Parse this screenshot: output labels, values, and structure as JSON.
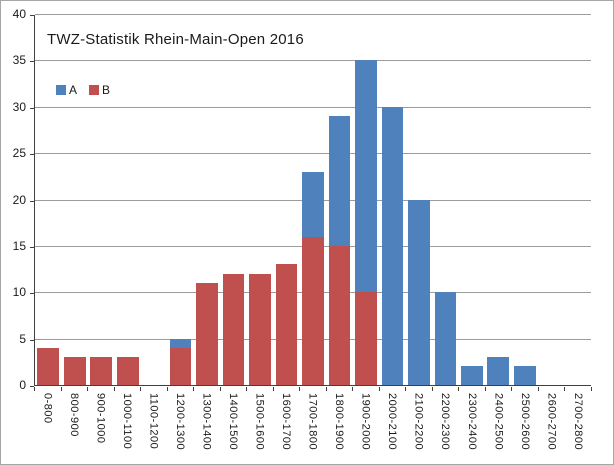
{
  "window": {
    "background": "#ffffff",
    "border_color": "#a6a6a6"
  },
  "chart_data": {
    "type": "bar",
    "title": "TWZ-Statistik Rhein-Main-Open 2016",
    "categories": [
      "0-800",
      "800-900",
      "900-1000",
      "1000-1100",
      "1100-1200",
      "1200-1300",
      "1300-1400",
      "1400-1500",
      "1500-1600",
      "1600-1700",
      "1700-1800",
      "1800-1900",
      "1900-2000",
      "2000-2100",
      "2100-2200",
      "2200-2300",
      "2300-2400",
      "2400-2500",
      "2500-2600",
      "2600-2700",
      "2700-2800"
    ],
    "series": [
      {
        "name": "A",
        "color": "#4F81BD",
        "values": [
          0,
          0,
          0,
          0,
          0,
          5,
          0,
          0,
          0,
          0,
          23,
          29,
          35,
          30,
          20,
          10,
          2,
          3,
          2,
          0,
          0
        ]
      },
      {
        "name": "B",
        "color": "#C0504D",
        "values": [
          4,
          3,
          3,
          3,
          0,
          4,
          11,
          12,
          12,
          13,
          16,
          15,
          10,
          0,
          0,
          0,
          0,
          0,
          0,
          0,
          0
        ]
      }
    ],
    "bar_mode": "overlap",
    "front_series": "B",
    "ylim": [
      0,
      40
    ],
    "yticks": [
      0,
      5,
      10,
      15,
      20,
      25,
      30,
      35,
      40
    ],
    "ytick_labels": [
      "0",
      "5",
      "10",
      "15",
      "20",
      "25",
      "30",
      "35",
      "40"
    ],
    "grid": true,
    "legend_position": "inside-top-left",
    "gridline_color": "#9c9c9c",
    "axis_color": "#404040",
    "text_color": "#1a1a1a"
  }
}
